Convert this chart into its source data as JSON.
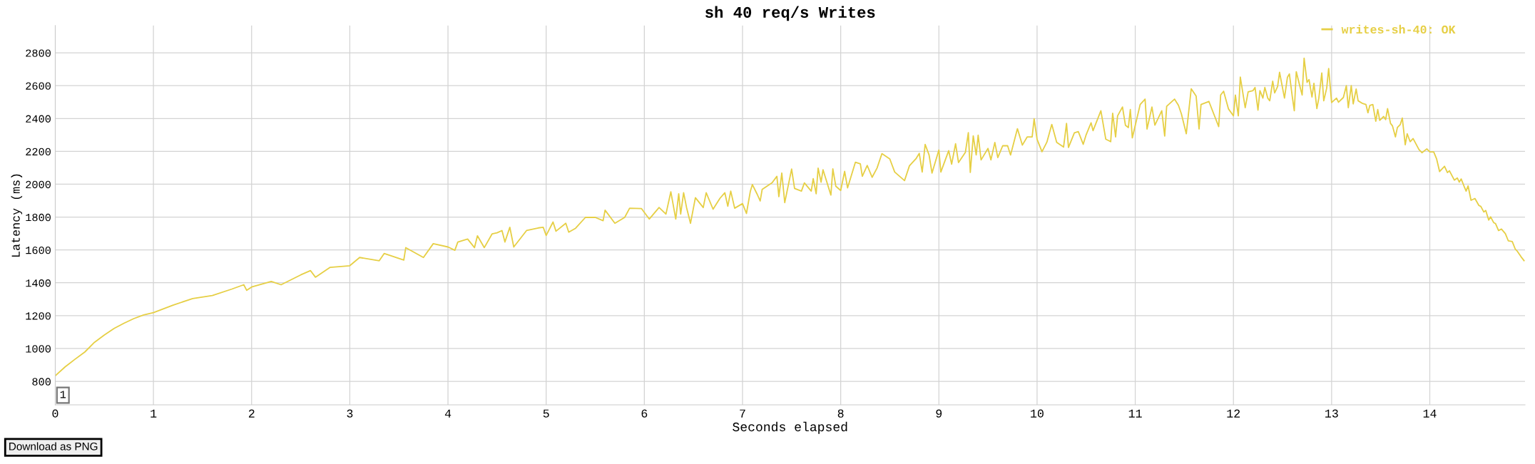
{
  "chart_data": {
    "type": "line",
    "title": "sh 40 req/s Writes",
    "xlabel": "Seconds elapsed",
    "ylabel": "Latency (ms)",
    "xlim": [
      0,
      14.97
    ],
    "ylim": [
      657,
      2966
    ],
    "xticks": [
      0,
      1,
      2,
      3,
      4,
      5,
      6,
      7,
      8,
      9,
      10,
      11,
      12,
      13,
      14
    ],
    "yticks": [
      800,
      1000,
      1200,
      1400,
      1600,
      1800,
      2000,
      2200,
      2400,
      2600,
      2800
    ],
    "grid": true,
    "legend": "top right",
    "marker": "none",
    "line_style": "solid",
    "annotations": [
      "1",
      "Download as PNG"
    ],
    "series": [
      {
        "name": "writes-sh-40: OK",
        "color": "#e6cf45",
        "x": [
          0,
          0.1,
          0.2,
          0.3,
          0.4,
          0.5,
          0.6,
          0.7,
          0.8,
          0.9,
          1.0,
          1.2,
          1.4,
          1.6,
          1.8,
          1.92,
          1.95,
          2.0,
          2.2,
          2.3,
          2.5,
          2.6,
          2.65,
          2.8,
          3.0,
          3.1,
          3.3,
          3.35,
          3.55,
          3.57,
          3.75,
          3.85,
          4.0,
          4.07,
          4.1,
          4.2,
          4.27,
          4.3,
          4.37,
          4.45,
          4.5,
          4.55,
          4.58,
          4.63,
          4.67,
          4.8,
          4.92,
          4.97,
          5.0,
          5.07,
          5.1,
          5.2,
          5.23,
          5.3,
          5.4,
          5.5,
          5.58,
          5.6,
          5.7,
          5.8,
          5.85,
          5.97,
          6.05,
          6.15,
          6.22,
          6.27,
          6.32,
          6.35,
          6.37,
          6.4,
          6.43,
          6.47,
          6.52,
          6.6,
          6.63,
          6.7,
          6.77,
          6.82,
          6.85,
          6.88,
          6.92,
          7.0,
          7.04,
          7.08,
          7.1,
          7.15,
          7.18,
          7.2,
          7.3,
          7.35,
          7.37,
          7.4,
          7.43,
          7.5,
          7.53,
          7.6,
          7.63,
          7.7,
          7.72,
          7.75,
          7.77,
          7.8,
          7.82,
          7.9,
          7.92,
          7.95,
          8.0,
          8.04,
          8.07,
          8.15,
          8.2,
          8.22,
          8.27,
          8.32,
          8.37,
          8.42,
          8.5,
          8.55,
          8.6,
          8.65,
          8.7,
          8.77,
          8.8,
          8.83,
          8.86,
          8.9,
          8.93,
          9.0,
          9.02,
          9.1,
          9.13,
          9.17,
          9.2,
          9.27,
          9.3,
          9.32,
          9.35,
          9.38,
          9.4,
          9.43,
          9.5,
          9.53,
          9.57,
          9.6,
          9.65,
          9.7,
          9.73,
          9.8,
          9.85,
          9.9,
          9.95,
          9.97,
          10.0,
          10.05,
          10.1,
          10.15,
          10.2,
          10.27,
          10.3,
          10.32,
          10.38,
          10.42,
          10.47,
          10.5,
          10.55,
          10.57,
          10.65,
          10.7,
          10.75,
          10.77,
          10.8,
          10.82,
          10.87,
          10.9,
          10.93,
          10.95,
          10.97,
          11.05,
          11.1,
          11.12,
          11.17,
          11.2,
          11.27,
          11.3,
          11.32,
          11.4,
          11.44,
          11.47,
          11.52,
          11.57,
          11.62,
          11.65,
          11.67,
          11.75,
          11.85,
          11.87,
          11.9,
          11.95,
          12.0,
          12.02,
          12.05,
          12.07,
          12.12,
          12.15,
          12.2,
          12.22,
          12.25,
          12.27,
          12.3,
          12.32,
          12.35,
          12.37,
          12.4,
          12.42,
          12.45,
          12.47,
          12.52,
          12.55,
          12.57,
          12.6,
          12.62,
          12.64,
          12.68,
          12.7,
          12.72,
          12.75,
          12.77,
          12.8,
          12.82,
          12.85,
          12.87,
          12.9,
          12.92,
          12.95,
          12.97,
          13.0,
          13.05,
          13.07,
          13.12,
          13.15,
          13.17,
          13.2,
          13.22,
          13.25,
          13.27,
          13.31,
          13.35,
          13.37,
          13.39,
          13.42,
          13.45,
          13.47,
          13.49,
          13.53,
          13.55,
          13.57,
          13.6,
          13.62,
          13.65,
          13.67,
          13.7,
          13.72,
          13.75,
          13.77,
          13.8,
          13.83,
          13.89,
          13.92,
          13.97,
          14.0,
          14.04,
          14.07,
          14.1,
          14.15,
          14.18,
          14.2,
          14.25,
          14.28,
          14.3,
          14.32,
          14.35,
          14.37,
          14.39,
          14.42,
          14.46,
          14.5,
          14.52,
          14.55,
          14.57,
          14.6,
          14.62,
          14.65,
          14.67,
          14.7,
          14.73,
          14.77,
          14.8,
          14.84,
          14.87,
          14.89,
          14.93,
          14.96
        ],
        "values": [
          834,
          888,
          934,
          978,
          1038,
          1082,
          1122,
          1154,
          1182,
          1204,
          1218,
          1264,
          1304,
          1322,
          1362,
          1388,
          1354,
          1374,
          1408,
          1388,
          1448,
          1474,
          1434,
          1494,
          1504,
          1554,
          1534,
          1578,
          1538,
          1614,
          1554,
          1638,
          1618,
          1598,
          1648,
          1666,
          1614,
          1686,
          1614,
          1698,
          1704,
          1718,
          1648,
          1738,
          1618,
          1718,
          1734,
          1738,
          1688,
          1770,
          1714,
          1762,
          1708,
          1732,
          1798,
          1798,
          1778,
          1842,
          1762,
          1798,
          1854,
          1852,
          1788,
          1858,
          1818,
          1954,
          1788,
          1942,
          1818,
          1948,
          1858,
          1762,
          1918,
          1858,
          1948,
          1848,
          1914,
          1948,
          1866,
          1958,
          1854,
          1882,
          1822,
          1958,
          1998,
          1938,
          1898,
          1968,
          2008,
          2048,
          1924,
          2068,
          1888,
          2092,
          1974,
          1958,
          2008,
          1958,
          2034,
          1942,
          2098,
          2012,
          2088,
          1934,
          2094,
          1988,
          1962,
          2078,
          1978,
          2134,
          2124,
          2048,
          2114,
          2042,
          2098,
          2186,
          2154,
          2074,
          2048,
          2022,
          2112,
          2158,
          2188,
          2074,
          2242,
          2178,
          2068,
          2208,
          2074,
          2204,
          2122,
          2246,
          2132,
          2194,
          2314,
          2072,
          2294,
          2178,
          2298,
          2148,
          2218,
          2148,
          2254,
          2162,
          2234,
          2234,
          2178,
          2338,
          2238,
          2288,
          2288,
          2398,
          2274,
          2198,
          2256,
          2364,
          2255,
          2226,
          2370,
          2224,
          2313,
          2320,
          2243,
          2301,
          2374,
          2326,
          2447,
          2274,
          2259,
          2432,
          2288,
          2416,
          2470,
          2359,
          2345,
          2455,
          2282,
          2485,
          2518,
          2336,
          2470,
          2359,
          2447,
          2293,
          2474,
          2518,
          2480,
          2428,
          2307,
          2581,
          2537,
          2336,
          2485,
          2504,
          2351,
          2543,
          2566,
          2458,
          2416,
          2543,
          2416,
          2652,
          2466,
          2562,
          2570,
          2589,
          2451,
          2570,
          2524,
          2589,
          2524,
          2508,
          2627,
          2556,
          2595,
          2681,
          2524,
          2651,
          2671,
          2531,
          2447,
          2685,
          2589,
          2543,
          2767,
          2620,
          2637,
          2531,
          2614,
          2460,
          2524,
          2677,
          2508,
          2585,
          2704,
          2497,
          2524,
          2499,
          2528,
          2600,
          2466,
          2600,
          2489,
          2579,
          2508,
          2493,
          2485,
          2435,
          2480,
          2485,
          2383,
          2455,
          2389,
          2412,
          2393,
          2460,
          2370,
          2355,
          2288,
          2345,
          2364,
          2403,
          2240,
          2307,
          2259,
          2278,
          2211,
          2192,
          2215,
          2197,
          2197,
          2153,
          2077,
          2109,
          2071,
          2082,
          2025,
          2038,
          2013,
          2032,
          1986,
          1958,
          1990,
          1902,
          1913,
          1871,
          1865,
          1831,
          1840,
          1782,
          1801,
          1767,
          1760,
          1718,
          1727,
          1699,
          1655,
          1651,
          1606,
          1593,
          1558,
          1535
        ]
      }
    ]
  }
}
